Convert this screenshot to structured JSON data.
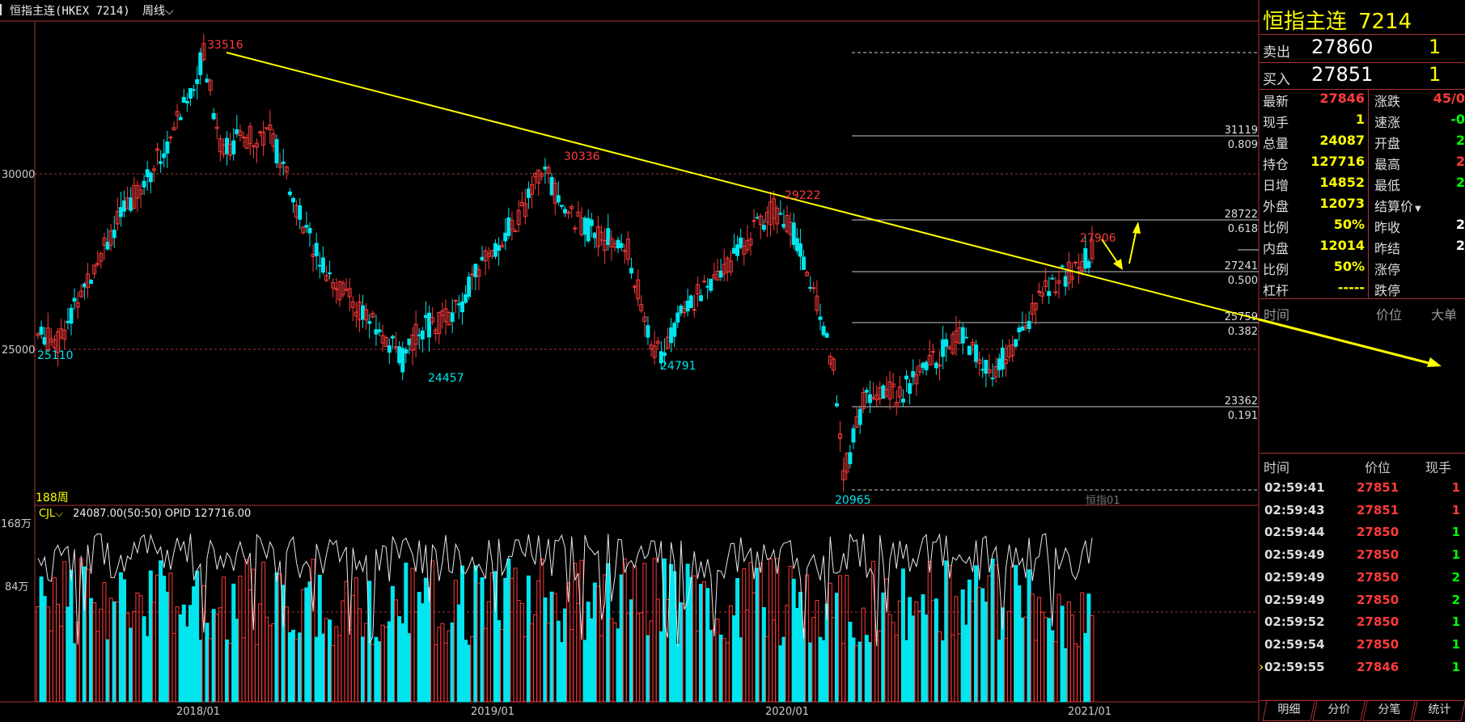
{
  "header": {
    "title": "恒指主连(HKEX 7214)",
    "period": "周线",
    "period_icon": "chevron-down-icon"
  },
  "chart": {
    "y_axis_labels": [
      "30000",
      "25000"
    ],
    "x_axis_labels": [
      "2018/01",
      "2019/01",
      "2020/01",
      "2021/01"
    ],
    "peak_labels": [
      "33516",
      "30336",
      "29222",
      "27906"
    ],
    "trough_labels": [
      "25110",
      "24457",
      "24791",
      "20965"
    ],
    "fib_levels": [
      {
        "price": "31119",
        "ratio": "0.809"
      },
      {
        "price": "28722",
        "ratio": "0.618"
      },
      {
        "price": "27241",
        "ratio": "0.500"
      },
      {
        "price": "25759",
        "ratio": "0.382"
      },
      {
        "price": "23362",
        "ratio": "0.191"
      }
    ],
    "period_count": "188周",
    "contract_tag": "恒指01",
    "colors": {
      "up": "#ff3b3b",
      "down": "#00e5ee",
      "trendline": "#ffff00",
      "fib": "#c8c8c8"
    }
  },
  "volume": {
    "indicator": "CJL",
    "indicator_icon": "chevron-down-icon",
    "readout": "24087.00(50:50)  OPID 127716.00",
    "y_labels": [
      "168万",
      "84万"
    ]
  },
  "quote": {
    "name": "恒指主连",
    "code": "7214",
    "ask_label": "卖出",
    "ask_price": "27860",
    "ask_vol": "1",
    "bid_label": "买入",
    "bid_price": "27851",
    "bid_vol": "1",
    "left": [
      {
        "label": "最新",
        "value": "27846",
        "color": "#ff3b3b"
      },
      {
        "label": "现手",
        "value": "1",
        "color": "#ffff00"
      },
      {
        "label": "总量",
        "value": "24087",
        "color": "#ffff00"
      },
      {
        "label": "持仓",
        "value": "127716",
        "color": "#ffff00"
      },
      {
        "label": "日增",
        "value": "14852",
        "color": "#ffff00"
      },
      {
        "label": "外盘",
        "value": "12073",
        "color": "#ffff00"
      },
      {
        "label": "比例",
        "value": "50%",
        "color": "#ffff00"
      },
      {
        "label": "内盘",
        "value": "12014",
        "color": "#ffff00"
      },
      {
        "label": "比例",
        "value": "50%",
        "color": "#ffff00"
      },
      {
        "label": "杠杆",
        "value": "-----",
        "color": "#ffff00"
      }
    ],
    "right": [
      {
        "label": "涨跌",
        "value": "45/0",
        "color": "#ff3b3b"
      },
      {
        "label": "速涨",
        "value": "-0",
        "color": "#00ff00"
      },
      {
        "label": "开盘",
        "value": "2",
        "color": "#00ff00"
      },
      {
        "label": "最高",
        "value": "2",
        "color": "#ff3b3b"
      },
      {
        "label": "最低",
        "value": "2",
        "color": "#00ff00"
      },
      {
        "label": "结算价",
        "value": "",
        "color": "#ffffff"
      },
      {
        "label": "昨收",
        "value": "2",
        "color": "#ffffff"
      },
      {
        "label": "昨结",
        "value": "2",
        "color": "#ffffff"
      },
      {
        "label": "涨停",
        "value": "",
        "color": "#ffffff"
      },
      {
        "label": "跌停",
        "value": "",
        "color": "#ffffff"
      }
    ],
    "settle_icon": "caret-down-icon"
  },
  "big_orders": {
    "headers": [
      "时间",
      "价位",
      "大单"
    ]
  },
  "ticks": {
    "headers": [
      "时间",
      "价位",
      "现手"
    ],
    "rows": [
      {
        "time": "02:59:41",
        "price": "27851",
        "qty": "1",
        "qty_color": "#ff3b3b"
      },
      {
        "time": "02:59:43",
        "price": "27851",
        "qty": "1",
        "qty_color": "#ff3b3b"
      },
      {
        "time": "02:59:44",
        "price": "27850",
        "qty": "1",
        "qty_color": "#00ff00"
      },
      {
        "time": "02:59:49",
        "price": "27850",
        "qty": "1",
        "qty_color": "#00ff00"
      },
      {
        "time": "02:59:49",
        "price": "27850",
        "qty": "2",
        "qty_color": "#00ff00"
      },
      {
        "time": "02:59:49",
        "price": "27850",
        "qty": "2",
        "qty_color": "#00ff00"
      },
      {
        "time": "02:59:52",
        "price": "27850",
        "qty": "1",
        "qty_color": "#00ff00"
      },
      {
        "time": "02:59:54",
        "price": "27850",
        "qty": "1",
        "qty_color": "#00ff00"
      },
      {
        "time": "02:59:55",
        "price": "27846",
        "qty": "1",
        "qty_color": "#00ff00"
      }
    ],
    "cursor_icon": "cursor-arrow-icon"
  },
  "bottom_tabs": [
    "明细",
    "分价",
    "分笔",
    "统计"
  ]
}
